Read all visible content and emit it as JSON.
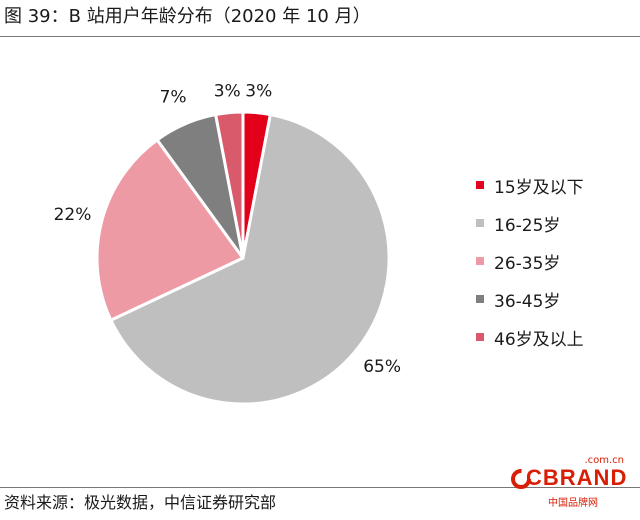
{
  "header": {
    "title": "图 39：B 站用户年龄分布（2020 年 10 月）"
  },
  "footer": {
    "source": "资料来源：极光数据，中信证券研究部"
  },
  "logo": {
    "domain": ".com.cn",
    "word": "CBRAND",
    "subtitle": "中国品牌网"
  },
  "chart_data": {
    "type": "pie",
    "title": "图 39：B 站用户年龄分布（2020 年 10 月）",
    "legend_position": "right",
    "slices": [
      {
        "name": "15岁及以下",
        "value": 3,
        "label": "3%",
        "color": "#e3001b"
      },
      {
        "name": "16-25岁",
        "value": 65,
        "label": "65%",
        "color": "#bfbfbf"
      },
      {
        "name": "26-35岁",
        "value": 22,
        "label": "22%",
        "color": "#ee9aa5"
      },
      {
        "name": "36-45岁",
        "value": 7,
        "label": "7%",
        "color": "#7f7f7f"
      },
      {
        "name": "46岁及以上",
        "value": 3,
        "label": "3%",
        "color": "#d85a6b"
      }
    ]
  }
}
